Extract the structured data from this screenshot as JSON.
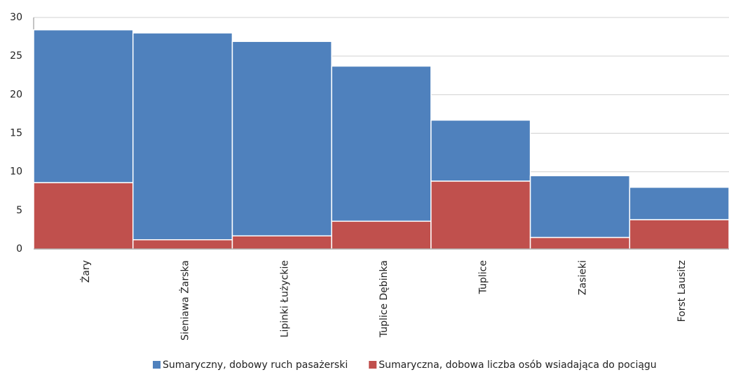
{
  "chart_data": {
    "type": "stacked_bar",
    "categories": [
      "Żary",
      "Sieniawa Żarska",
      "Lipinki Łużyckie",
      "Tuplice Dębinka",
      "Tuplice",
      "Zasieki",
      "Forst Lausitz"
    ],
    "series": [
      {
        "name": "Sumaryczna, dobowa liczba osób wsiadająca do pociągu",
        "color": "#c0504d",
        "values": [
          8.6,
          1.2,
          1.7,
          3.6,
          8.8,
          1.5,
          3.8
        ]
      },
      {
        "name": "Sumaryczny, dobowy ruch pasażerski",
        "color": "#4f81bd",
        "values": [
          19.8,
          26.8,
          25.2,
          20.1,
          7.9,
          8.0,
          4.2
        ]
      }
    ],
    "ylim": [
      0,
      30
    ],
    "yticks": [
      0,
      5,
      10,
      15,
      20,
      25,
      30
    ],
    "grid": true
  }
}
